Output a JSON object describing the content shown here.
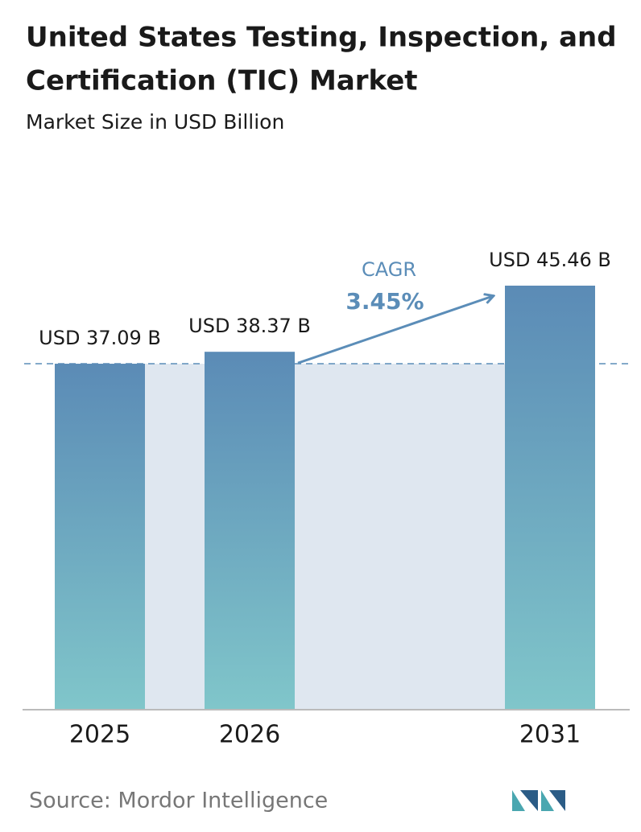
{
  "chart_data": {
    "type": "bar",
    "title": [
      "United States Testing, Inspection, and",
      "Certification (TIC) Market"
    ],
    "subtitle": "Market Size in USD Billion",
    "categories": [
      "2025",
      "2026",
      "2031"
    ],
    "values": [
      37.09,
      38.37,
      45.46
    ],
    "value_labels": [
      "USD 37.09 B",
      "USD 38.37 B",
      "USD 45.46 B"
    ],
    "annotation": {
      "label": "CAGR",
      "value": "3.45%"
    },
    "source": "Source: Mordor Intelligence"
  }
}
